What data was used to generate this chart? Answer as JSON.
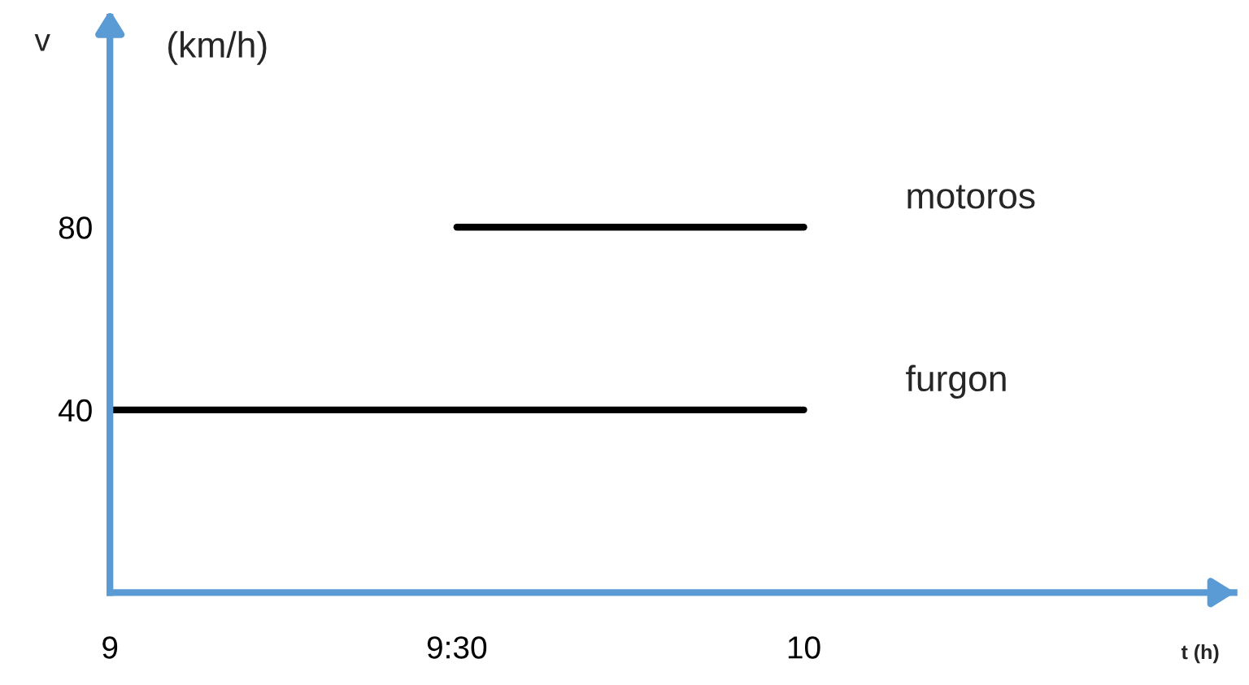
{
  "chart_data": {
    "type": "line",
    "ylabel": "v",
    "xlabel": "t (h)",
    "annotations": [
      "(km/h)"
    ],
    "series": [
      {
        "name": "motoros",
        "color": "#000000",
        "x": [
          9.5,
          10
        ],
        "values": [
          80,
          80
        ]
      },
      {
        "name": "furgon",
        "color": "#000000",
        "x": [
          9,
          10
        ],
        "values": [
          40,
          40
        ]
      }
    ],
    "xlim": [
      9,
      10.62
    ],
    "xticks": [
      9,
      {
        "value": 9.5,
        "label": "9:30"
      },
      10
    ],
    "ylim": [
      0,
      126
    ],
    "yticks": [
      40,
      80
    ],
    "grid": false,
    "legend": false,
    "marker": "none",
    "line_style": "solid"
  }
}
